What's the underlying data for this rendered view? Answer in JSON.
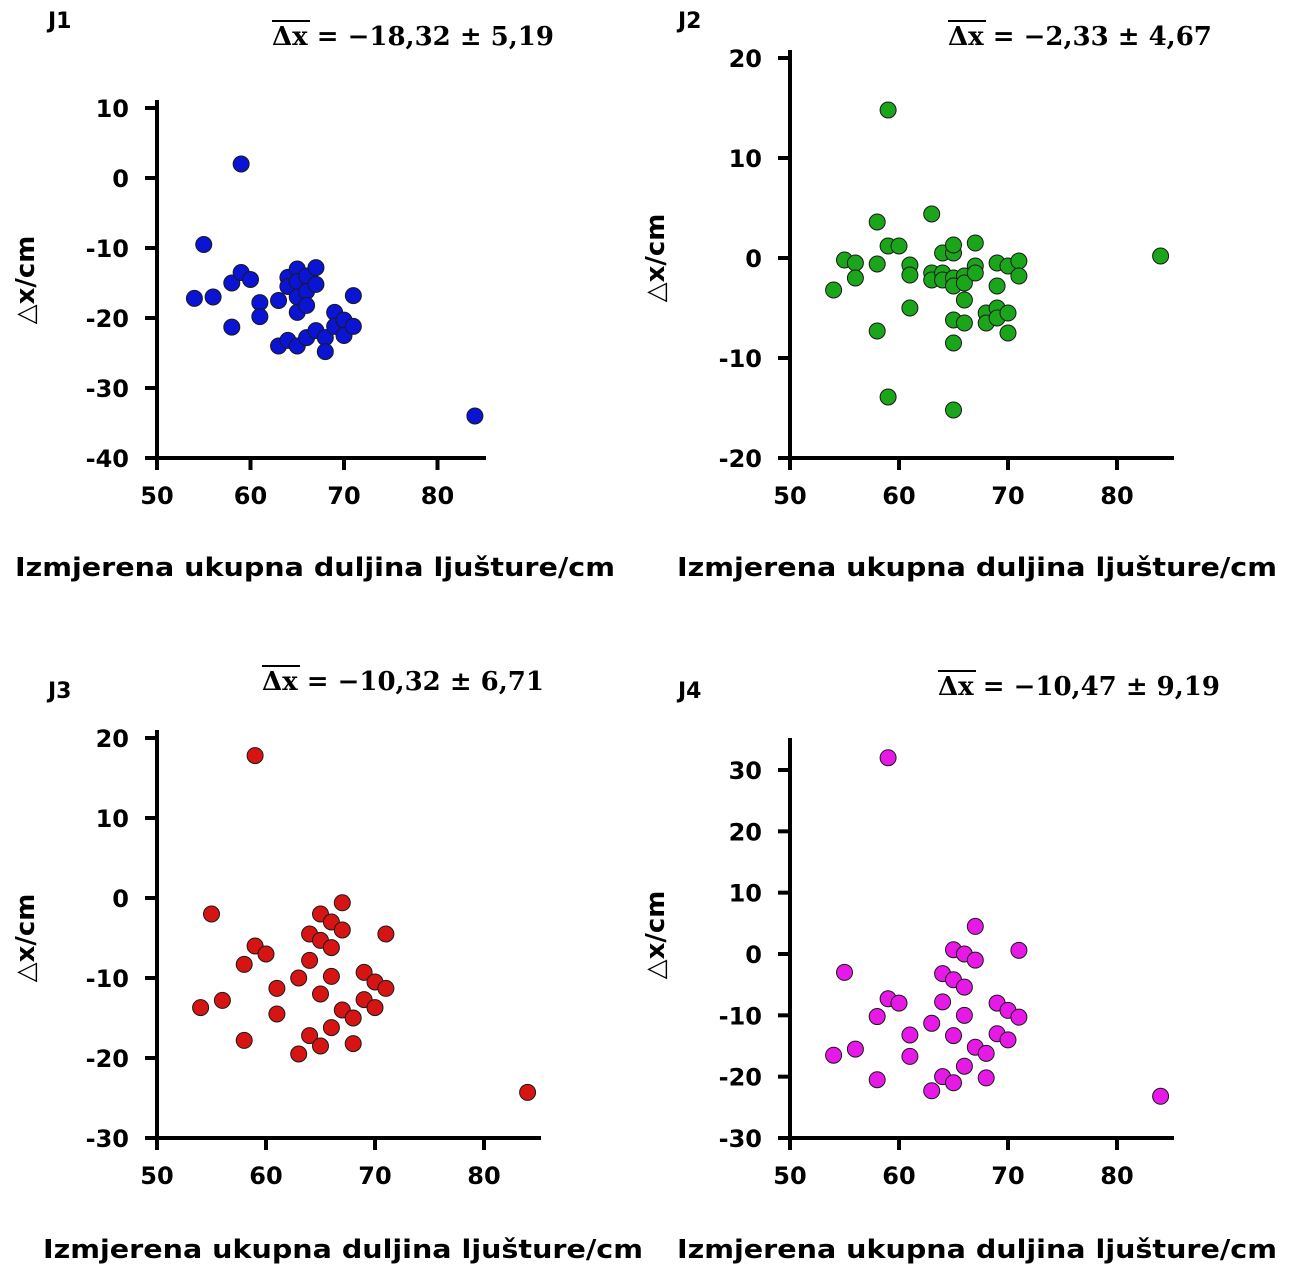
{
  "chart_data": [
    {
      "type": "scatter",
      "panel_label": "J1",
      "stat_label": "Δx",
      "stat_value": " = −18,32 ± 5,19",
      "xlabel": "Izmjerena ukupna duljina ljušture/cm",
      "ylabel": "△x/cm",
      "xlim": [
        50,
        85
      ],
      "ylim": [
        -40,
        10
      ],
      "xticks": [
        50,
        60,
        70,
        80
      ],
      "yticks": [
        10,
        0,
        -10,
        -20,
        -30,
        -40
      ],
      "color": "#0a14d2",
      "grid": false,
      "points": [
        [
          54,
          -17.2
        ],
        [
          55,
          -9.5
        ],
        [
          56,
          -17
        ],
        [
          58,
          -15
        ],
        [
          58,
          -21.3
        ],
        [
          59,
          -13.5
        ],
        [
          59,
          2
        ],
        [
          60,
          -14.5
        ],
        [
          61,
          -17.8
        ],
        [
          61,
          -19.8
        ],
        [
          63,
          -17.5
        ],
        [
          63,
          -24
        ],
        [
          64,
          -14.2
        ],
        [
          64,
          -15.5
        ],
        [
          64,
          -23.2
        ],
        [
          65,
          -13
        ],
        [
          65,
          -14.8
        ],
        [
          65,
          -17
        ],
        [
          65,
          -19.2
        ],
        [
          65,
          -24
        ],
        [
          66,
          -14
        ],
        [
          66,
          -16.2
        ],
        [
          66,
          -18.2
        ],
        [
          66,
          -22.8
        ],
        [
          67,
          -12.8
        ],
        [
          67,
          -15.2
        ],
        [
          67,
          -21.8
        ],
        [
          68,
          -22.8
        ],
        [
          68,
          -24.8
        ],
        [
          69,
          -19.2
        ],
        [
          69,
          -21.2
        ],
        [
          70,
          -20.3
        ],
        [
          70,
          -22.5
        ],
        [
          71,
          -21.2
        ],
        [
          71,
          -16.8
        ],
        [
          84,
          -34
        ]
      ]
    },
    {
      "type": "scatter",
      "panel_label": "J2",
      "stat_label": "Δx",
      "stat_value": " = −2,33 ± 4,67",
      "xlabel": "Izmjerena ukupna duljina ljušture/cm",
      "ylabel": "△x/cm",
      "xlim": [
        50,
        85
      ],
      "ylim": [
        -20,
        20
      ],
      "xticks": [
        50,
        60,
        70,
        80
      ],
      "yticks": [
        20,
        10,
        0,
        -10,
        -20
      ],
      "color": "#1aa51a",
      "grid": false,
      "points": [
        [
          54,
          -3.2
        ],
        [
          55,
          -0.2
        ],
        [
          56,
          -0.5
        ],
        [
          56,
          -2
        ],
        [
          58,
          3.6
        ],
        [
          58,
          -0.6
        ],
        [
          58,
          -7.3
        ],
        [
          59,
          1.2
        ],
        [
          59,
          14.8
        ],
        [
          59,
          -13.9
        ],
        [
          60,
          1.2
        ],
        [
          61,
          -0.7
        ],
        [
          61,
          -1.7
        ],
        [
          61,
          -5
        ],
        [
          63,
          4.4
        ],
        [
          63,
          -1.5
        ],
        [
          63,
          -2.2
        ],
        [
          64,
          0.5
        ],
        [
          64,
          -1.5
        ],
        [
          64,
          -2.2
        ],
        [
          65,
          0.5
        ],
        [
          65,
          1.3
        ],
        [
          65,
          -2
        ],
        [
          65,
          -2.8
        ],
        [
          65,
          -6.2
        ],
        [
          65,
          -8.5
        ],
        [
          65,
          -15.2
        ],
        [
          66,
          -1.8
        ],
        [
          66,
          -2.5
        ],
        [
          66,
          -4.2
        ],
        [
          66,
          -6.5
        ],
        [
          67,
          1.5
        ],
        [
          67,
          -0.8
        ],
        [
          67,
          -1.5
        ],
        [
          68,
          -5.5
        ],
        [
          68,
          -6.5
        ],
        [
          69,
          -0.5
        ],
        [
          69,
          -2.8
        ],
        [
          69,
          -5
        ],
        [
          69,
          -6
        ],
        [
          70,
          -0.8
        ],
        [
          70,
          -5.5
        ],
        [
          70,
          -7.5
        ],
        [
          71,
          -0.3
        ],
        [
          71,
          -1.8
        ],
        [
          84,
          0.2
        ]
      ]
    },
    {
      "type": "scatter",
      "panel_label": "J3",
      "stat_label": "Δx",
      "stat_value": " = −10,32 ± 6,71",
      "xlabel": "Izmjerena ukupna duljina ljušture/cm",
      "ylabel": "△x/cm",
      "xlim": [
        50,
        85
      ],
      "ylim": [
        -30,
        20
      ],
      "xticks": [
        50,
        60,
        70,
        80
      ],
      "yticks": [
        20,
        10,
        0,
        -10,
        -20,
        -30
      ],
      "color": "#d71414",
      "grid": false,
      "points": [
        [
          54,
          -13.7
        ],
        [
          55,
          -2
        ],
        [
          56,
          -12.8
        ],
        [
          58,
          -8.3
        ],
        [
          58,
          -17.8
        ],
        [
          59,
          -6
        ],
        [
          59,
          17.8
        ],
        [
          60,
          -7
        ],
        [
          61,
          -11.3
        ],
        [
          61,
          -14.5
        ],
        [
          63,
          -10
        ],
        [
          63,
          -19.5
        ],
        [
          64,
          -4.5
        ],
        [
          64,
          -7.8
        ],
        [
          64,
          -17.2
        ],
        [
          65,
          -2
        ],
        [
          65,
          -5.3
        ],
        [
          65,
          -12
        ],
        [
          65,
          -18.5
        ],
        [
          66,
          -3
        ],
        [
          66,
          -6.2
        ],
        [
          66,
          -9.8
        ],
        [
          66,
          -16.2
        ],
        [
          67,
          -0.6
        ],
        [
          67,
          -4
        ],
        [
          67,
          -14
        ],
        [
          68,
          -15
        ],
        [
          68,
          -18.2
        ],
        [
          69,
          -9.3
        ],
        [
          69,
          -12.7
        ],
        [
          70,
          -10.5
        ],
        [
          70,
          -13.7
        ],
        [
          71,
          -4.5
        ],
        [
          71,
          -11.3
        ],
        [
          84,
          -24.3
        ]
      ]
    },
    {
      "type": "scatter",
      "panel_label": "J4",
      "stat_label": "Δx",
      "stat_value": " = −10,47 ± 9,19",
      "xlabel": "Izmjerena ukupna duljina ljušture/cm",
      "ylabel": "△x/cm",
      "xlim": [
        50,
        85
      ],
      "ylim": [
        -30,
        35
      ],
      "xticks": [
        50,
        60,
        70,
        80
      ],
      "yticks": [
        30,
        20,
        10,
        0,
        -10,
        -20,
        -30
      ],
      "color": "#e619e6",
      "grid": false,
      "points": [
        [
          54,
          -16.5
        ],
        [
          55,
          -3
        ],
        [
          56,
          -15.5
        ],
        [
          58,
          -10.2
        ],
        [
          58,
          -20.5
        ],
        [
          59,
          -7.3
        ],
        [
          59,
          32
        ],
        [
          60,
          -8
        ],
        [
          61,
          -13.2
        ],
        [
          61,
          -16.7
        ],
        [
          63,
          -11.3
        ],
        [
          63,
          -22.3
        ],
        [
          64,
          -3.2
        ],
        [
          64,
          -7.8
        ],
        [
          64,
          -20
        ],
        [
          65,
          0.7
        ],
        [
          65,
          -4.2
        ],
        [
          65,
          -13.3
        ],
        [
          65,
          -21
        ],
        [
          66,
          0
        ],
        [
          66,
          -5.4
        ],
        [
          66,
          -10
        ],
        [
          66,
          -18.3
        ],
        [
          67,
          4.5
        ],
        [
          67,
          -1
        ],
        [
          67,
          -15.2
        ],
        [
          68,
          -16.2
        ],
        [
          68,
          -20.2
        ],
        [
          69,
          -8
        ],
        [
          69,
          -13
        ],
        [
          70,
          -9.2
        ],
        [
          70,
          -14
        ],
        [
          71,
          0.6
        ],
        [
          71,
          -10.3
        ],
        [
          84,
          -23.2
        ]
      ]
    }
  ]
}
